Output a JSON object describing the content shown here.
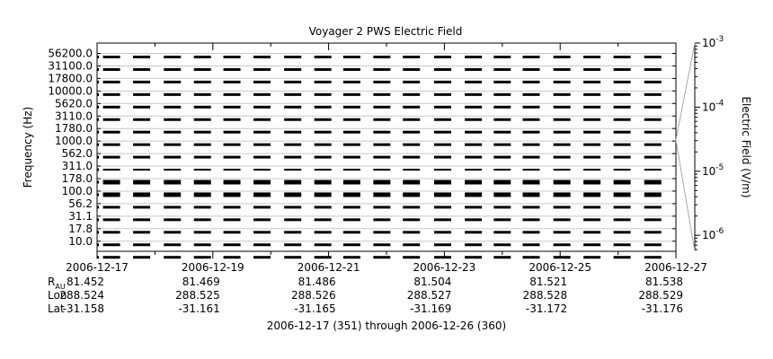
{
  "chart_data": {
    "type": "heatmap",
    "title": "Voyager 2 PWS Electric Field",
    "ylabel": "Frequency (Hz)",
    "colorbar_label": "Electric Field (V/m)",
    "xlabel": "2006-12-17 (351) through 2006-12-26 (360)",
    "x_ticks": [
      "2006-12-17",
      "2006-12-19",
      "2006-12-21",
      "2006-12-23",
      "2006-12-25",
      "2006-12-27"
    ],
    "x_range": [
      "2006-12-17",
      "2006-12-27"
    ],
    "y_ticks": [
      "56200.0",
      "31100.0",
      "17800.0",
      "10000.0",
      "5620.0",
      "3110.0",
      "1780.0",
      "1000.0",
      "562.0",
      "311.0",
      "178.0",
      "100.0",
      "56.2",
      "31.1",
      "17.8",
      "10.0"
    ],
    "colorbar": {
      "scale": "log",
      "range": [
        "1e-6.2",
        "1e-3"
      ],
      "ticks": [
        {
          "base": "10",
          "exp": "-3"
        },
        {
          "base": "10",
          "exp": "-4"
        },
        {
          "base": "10",
          "exp": "-5"
        },
        {
          "base": "10",
          "exp": "-6"
        }
      ]
    },
    "ephemeris": {
      "rows": [
        {
          "label": "R",
          "sub": "AU",
          "values": [
            "81.452",
            "81.469",
            "81.486",
            "81.504",
            "81.521",
            "81.538"
          ]
        },
        {
          "label": "Lon",
          "sub": "",
          "values": [
            "288.524",
            "288.525",
            "288.526",
            "288.527",
            "288.528",
            "288.529"
          ]
        },
        {
          "label": "Lat",
          "sub": "",
          "values": [
            "-31.158",
            "-31.161",
            "-31.165",
            "-31.169",
            "-31.172",
            "-31.176"
          ]
        }
      ]
    },
    "data_segments_days": [
      0.25,
      0.77,
      1.3,
      1.82,
      2.33,
      2.85,
      3.38,
      3.9,
      4.4,
      4.92,
      5.43,
      5.97,
      6.5,
      7.0,
      7.5,
      8.03,
      8.55,
      9.07,
      9.6
    ]
  }
}
